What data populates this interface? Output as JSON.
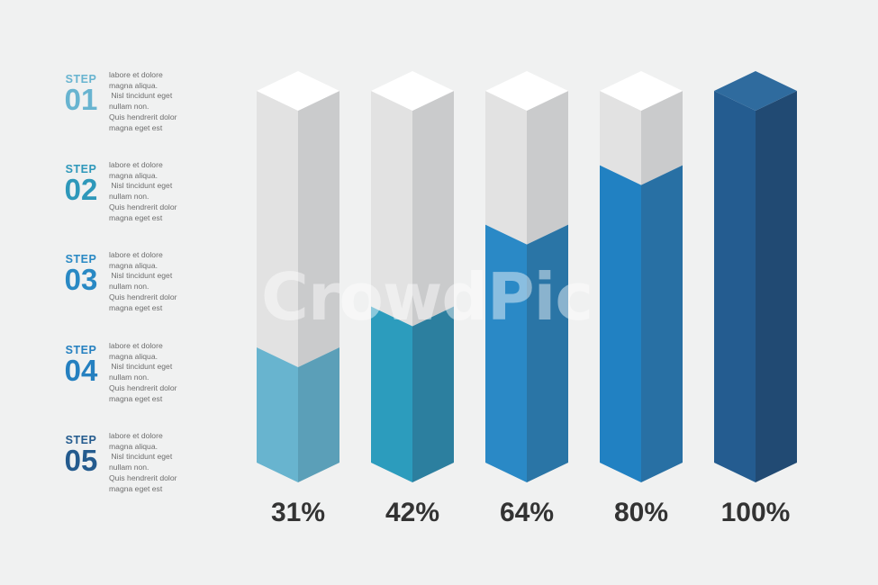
{
  "steps": [
    {
      "label": "STEP",
      "number": "01",
      "color": "#68b4d0",
      "text": "labore et dolore\nmagna aliqua.\n Nisl tincidunt eget\nnullam non.\nQuis hendrerit dolor\nmagna eget est"
    },
    {
      "label": "STEP",
      "number": "02",
      "color": "#2e98ba",
      "text": "labore et dolore\nmagna aliqua.\n Nisl tincidunt eget\nnullam non.\nQuis hendrerit dolor\nmagna eget est"
    },
    {
      "label": "STEP",
      "number": "03",
      "color": "#2989c4",
      "text": "labore et dolore\nmagna aliqua.\n Nisl tincidunt eget\nnullam non.\nQuis hendrerit dolor\nmagna eget est"
    },
    {
      "label": "STEP",
      "number": "04",
      "color": "#2580c0",
      "text": "labore et dolore\nmagna aliqua.\n Nisl tincidunt eget\nnullam non.\nQuis hendrerit dolor\nmagna eget est"
    },
    {
      "label": "STEP",
      "number": "05",
      "color": "#245b8e",
      "text": "labore et dolore\nmagna aliqua.\n Nisl tincidunt eget\nnullam non.\nQuis hendrerit dolor\nmagna eget est"
    }
  ],
  "chart_data": {
    "type": "bar",
    "categories": [
      "31%",
      "42%",
      "64%",
      "80%",
      "100%"
    ],
    "values": [
      31,
      42,
      64,
      80,
      100
    ],
    "ylim": [
      0,
      100
    ],
    "colors": [
      {
        "front": "#68b4cf",
        "side": "#5b9fb8",
        "top": "#83c4dd"
      },
      {
        "front": "#2c9cbd",
        "side": "#2c7f9f",
        "top": "#4fb3d2"
      },
      {
        "front": "#2a89c6",
        "side": "#2a75a6",
        "top": "#4aa2d8"
      },
      {
        "front": "#2181c2",
        "side": "#2870a4",
        "top": "#3f9ad4"
      },
      {
        "front": "#245c90",
        "side": "#214a73",
        "top": "#2f6b9e"
      }
    ],
    "empty_colors": {
      "front": "#e2e2e2",
      "side": "#cacbcc",
      "top": "#ffffff"
    }
  },
  "watermark": "CrowdPic"
}
